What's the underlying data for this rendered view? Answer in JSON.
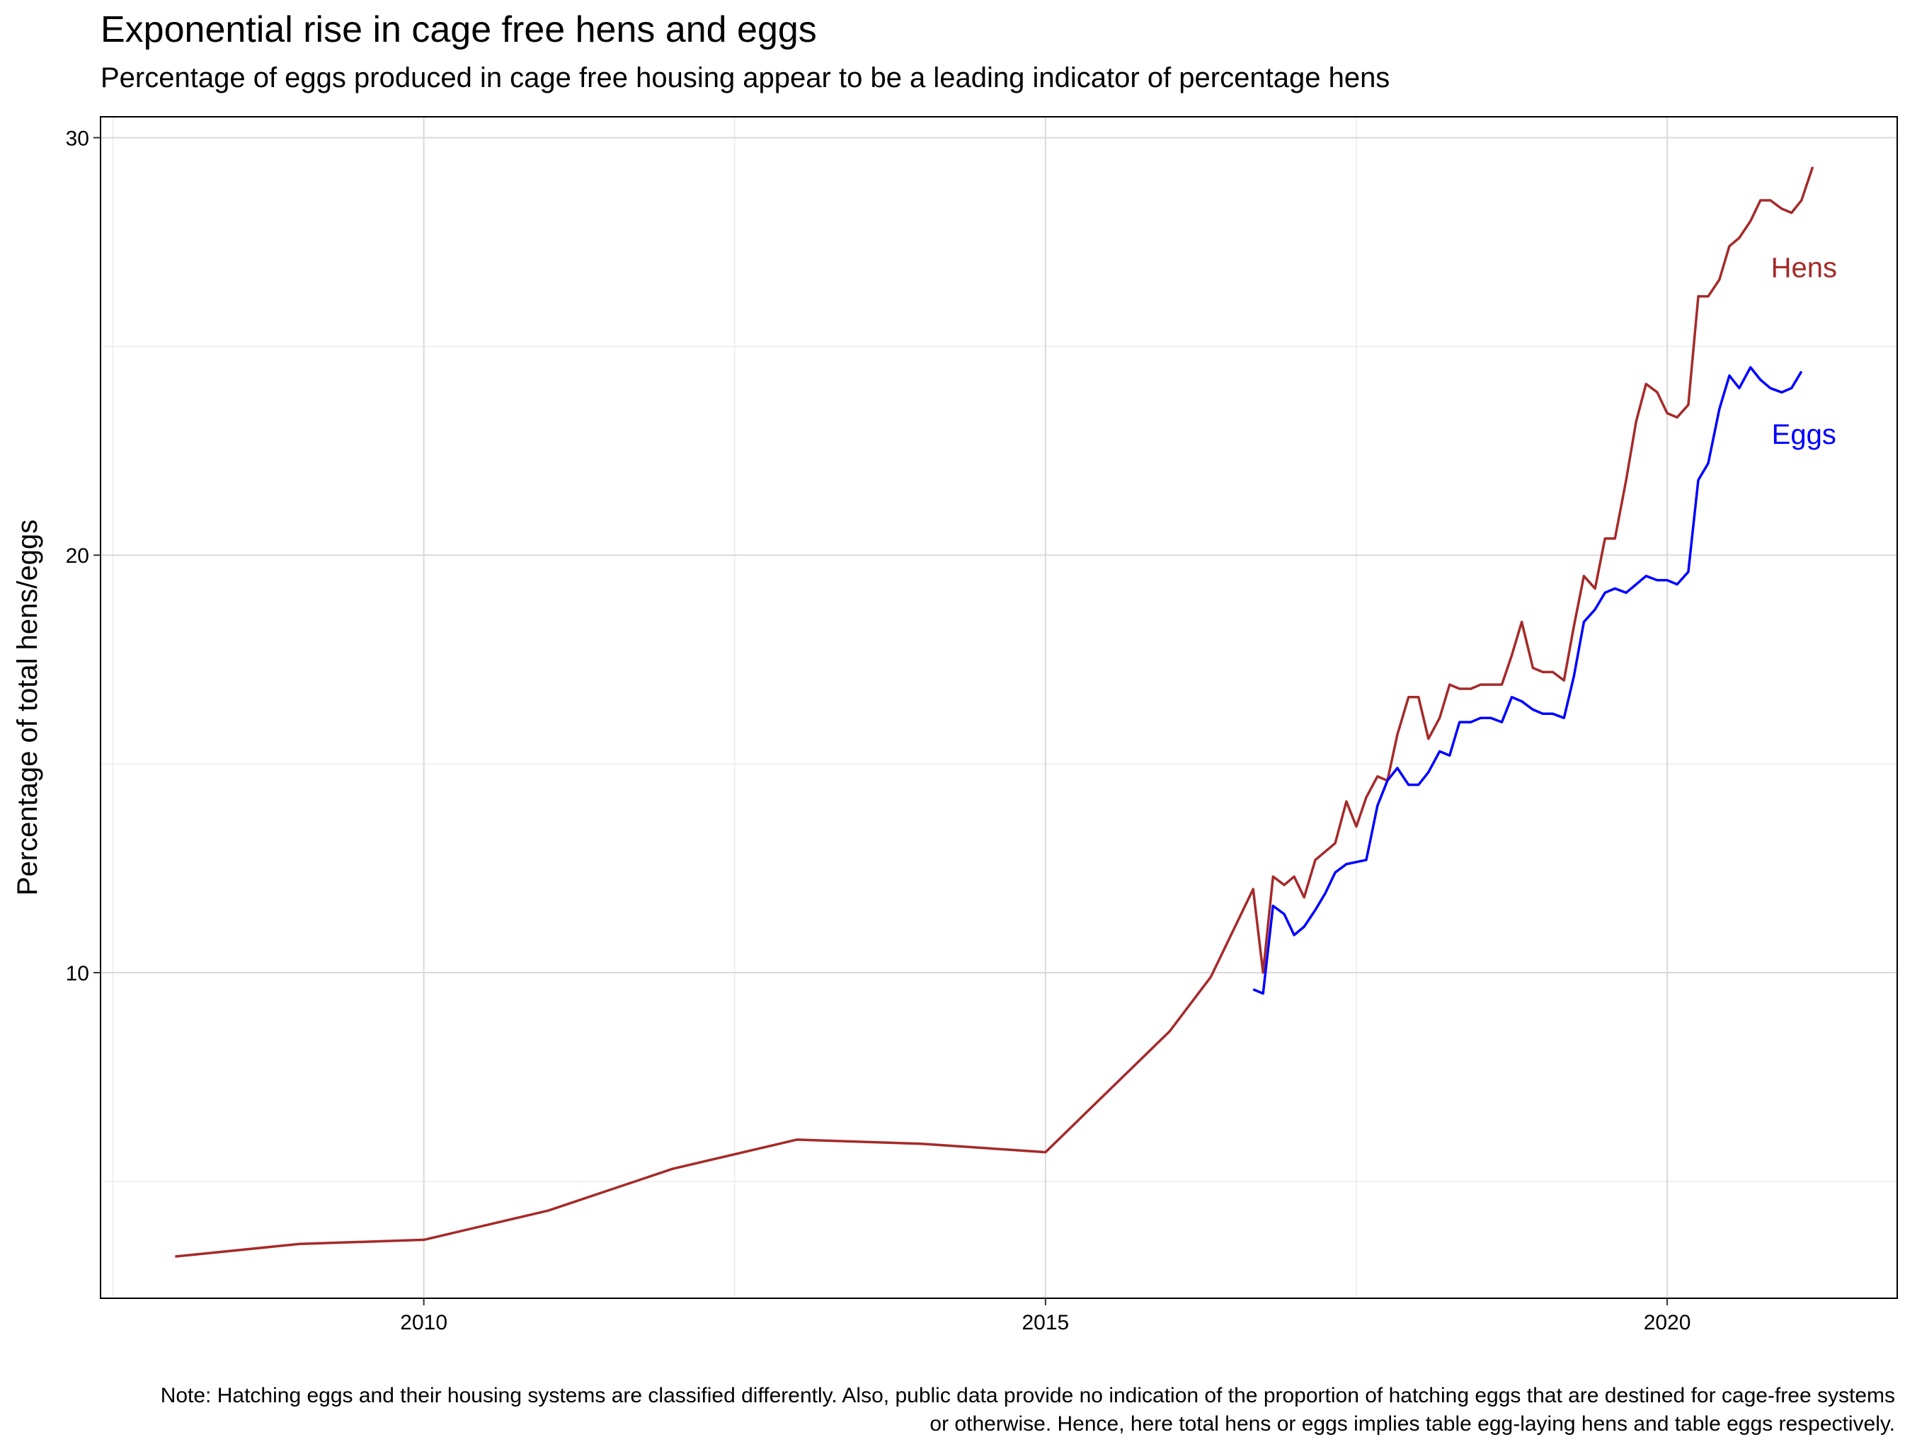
{
  "chart_data": {
    "type": "line",
    "title": "Exponential rise in cage free hens and eggs",
    "subtitle": "Percentage of eggs produced in cage free housing appear to be a leading indicator of percentage hens",
    "xlabel": "",
    "ylabel": "Percentage of total hens/eggs",
    "xlim": [
      2007.4,
      2021.85
    ],
    "ylim": [
      2.2,
      30.5
    ],
    "x_ticks": [
      2010,
      2015,
      2020
    ],
    "x_tick_labels": [
      "2010",
      "2015",
      "2020"
    ],
    "y_ticks": [
      10,
      20,
      30
    ],
    "y_tick_labels": [
      "10",
      "20",
      "30"
    ],
    "grid": true,
    "legend": "none",
    "series": [
      {
        "name": "Hens",
        "color": "#a52a2a",
        "label_at": [
          2021.1,
          26.9
        ],
        "points": [
          [
            2008.0,
            3.2
          ],
          [
            2009.0,
            3.5
          ],
          [
            2010.0,
            3.6
          ],
          [
            2011.0,
            4.3
          ],
          [
            2012.0,
            5.3
          ],
          [
            2013.0,
            6.0
          ],
          [
            2014.0,
            5.9
          ],
          [
            2015.0,
            5.7
          ],
          [
            2016.0,
            8.6
          ],
          [
            2016.33,
            9.9
          ],
          [
            2016.67,
            12.0
          ],
          [
            2016.75,
            10.0
          ],
          [
            2016.83,
            12.3
          ],
          [
            2016.92,
            12.1
          ],
          [
            2017.0,
            12.3
          ],
          [
            2017.08,
            11.8
          ],
          [
            2017.17,
            12.7
          ],
          [
            2017.33,
            13.1
          ],
          [
            2017.42,
            14.1
          ],
          [
            2017.5,
            13.5
          ],
          [
            2017.58,
            14.2
          ],
          [
            2017.67,
            14.7
          ],
          [
            2017.75,
            14.6
          ],
          [
            2017.83,
            15.7
          ],
          [
            2017.92,
            16.6
          ],
          [
            2018.0,
            16.6
          ],
          [
            2018.08,
            15.6
          ],
          [
            2018.17,
            16.1
          ],
          [
            2018.25,
            16.9
          ],
          [
            2018.33,
            16.8
          ],
          [
            2018.42,
            16.8
          ],
          [
            2018.5,
            16.9
          ],
          [
            2018.58,
            16.9
          ],
          [
            2018.67,
            16.9
          ],
          [
            2018.75,
            17.6
          ],
          [
            2018.83,
            18.4
          ],
          [
            2018.92,
            17.3
          ],
          [
            2019.0,
            17.2
          ],
          [
            2019.08,
            17.2
          ],
          [
            2019.17,
            17.0
          ],
          [
            2019.25,
            18.3
          ],
          [
            2019.33,
            19.5
          ],
          [
            2019.42,
            19.2
          ],
          [
            2019.5,
            20.4
          ],
          [
            2019.58,
            20.4
          ],
          [
            2019.67,
            21.8
          ],
          [
            2019.75,
            23.2
          ],
          [
            2019.83,
            24.1
          ],
          [
            2019.92,
            23.9
          ],
          [
            2020.0,
            23.4
          ],
          [
            2020.08,
            23.3
          ],
          [
            2020.17,
            23.6
          ],
          [
            2020.25,
            26.2
          ],
          [
            2020.33,
            26.2
          ],
          [
            2020.42,
            26.6
          ],
          [
            2020.5,
            27.4
          ],
          [
            2020.58,
            27.6
          ],
          [
            2020.67,
            28.0
          ],
          [
            2020.75,
            28.5
          ],
          [
            2020.83,
            28.5
          ],
          [
            2020.92,
            28.3
          ],
          [
            2021.0,
            28.2
          ],
          [
            2021.08,
            28.5
          ],
          [
            2021.17,
            29.3
          ]
        ]
      },
      {
        "name": "Eggs",
        "color": "#0000ff",
        "label_at": [
          2021.1,
          22.9
        ],
        "points": [
          [
            2016.67,
            9.6
          ],
          [
            2016.75,
            9.5
          ],
          [
            2016.83,
            11.6
          ],
          [
            2016.92,
            11.4
          ],
          [
            2017.0,
            10.9
          ],
          [
            2017.08,
            11.1
          ],
          [
            2017.17,
            11.5
          ],
          [
            2017.25,
            11.9
          ],
          [
            2017.33,
            12.4
          ],
          [
            2017.42,
            12.6
          ],
          [
            2017.58,
            12.7
          ],
          [
            2017.67,
            14.0
          ],
          [
            2017.75,
            14.6
          ],
          [
            2017.83,
            14.9
          ],
          [
            2017.92,
            14.5
          ],
          [
            2018.0,
            14.5
          ],
          [
            2018.08,
            14.8
          ],
          [
            2018.17,
            15.3
          ],
          [
            2018.25,
            15.2
          ],
          [
            2018.33,
            16.0
          ],
          [
            2018.42,
            16.0
          ],
          [
            2018.5,
            16.1
          ],
          [
            2018.58,
            16.1
          ],
          [
            2018.67,
            16.0
          ],
          [
            2018.75,
            16.6
          ],
          [
            2018.83,
            16.5
          ],
          [
            2018.92,
            16.3
          ],
          [
            2019.0,
            16.2
          ],
          [
            2019.08,
            16.2
          ],
          [
            2019.17,
            16.1
          ],
          [
            2019.25,
            17.1
          ],
          [
            2019.33,
            18.4
          ],
          [
            2019.42,
            18.7
          ],
          [
            2019.5,
            19.1
          ],
          [
            2019.58,
            19.2
          ],
          [
            2019.67,
            19.1
          ],
          [
            2019.75,
            19.3
          ],
          [
            2019.83,
            19.5
          ],
          [
            2019.92,
            19.4
          ],
          [
            2020.0,
            19.4
          ],
          [
            2020.08,
            19.3
          ],
          [
            2020.17,
            19.6
          ],
          [
            2020.25,
            21.8
          ],
          [
            2020.33,
            22.2
          ],
          [
            2020.42,
            23.5
          ],
          [
            2020.5,
            24.3
          ],
          [
            2020.58,
            24.0
          ],
          [
            2020.67,
            24.5
          ],
          [
            2020.75,
            24.2
          ],
          [
            2020.83,
            24.0
          ],
          [
            2020.92,
            23.9
          ],
          [
            2021.0,
            24.0
          ],
          [
            2021.08,
            24.4
          ]
        ]
      }
    ],
    "caption_lines": [
      "Note: Hatching eggs and their housing systems are classified differently. Also, public data provide no indication of the proportion of hatching eggs that are destined for cage-free systems",
      "or otherwise. Hence, here total hens or eggs implies table egg-laying hens and table eggs respectively."
    ]
  }
}
